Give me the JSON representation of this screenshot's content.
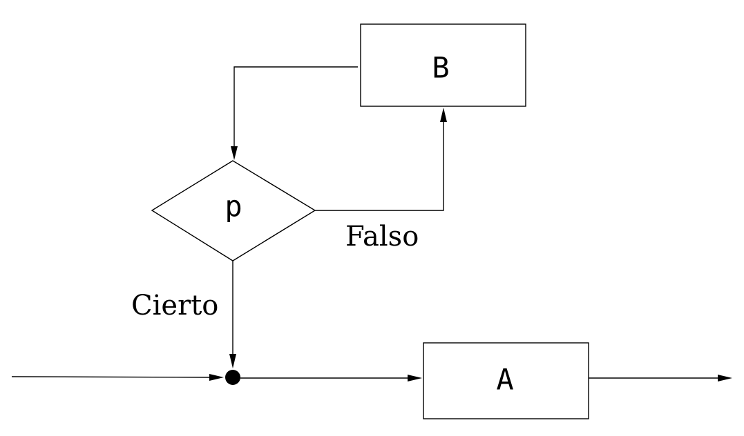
{
  "diagram": {
    "type": "flowchart",
    "nodes": {
      "process_b": {
        "label": "B",
        "shape": "rectangle"
      },
      "decision_p": {
        "label": "p",
        "shape": "diamond"
      },
      "process_a": {
        "label": "A",
        "shape": "rectangle"
      },
      "junction": {
        "shape": "filled-circle"
      }
    },
    "edges": [
      {
        "from": "input",
        "to": "junction",
        "label": ""
      },
      {
        "from": "junction",
        "to": "process_a",
        "label": ""
      },
      {
        "from": "process_a",
        "to": "output",
        "label": ""
      },
      {
        "from": "decision_p",
        "to": "process_b",
        "label": "Falso"
      },
      {
        "from": "process_b",
        "to": "decision_p",
        "label": ""
      },
      {
        "from": "decision_p",
        "to": "junction",
        "label": "Cierto"
      }
    ],
    "branch_labels": {
      "false": "Falso",
      "true": "Cierto"
    },
    "colors": {
      "stroke": "#000000",
      "background": "#ffffff"
    }
  }
}
